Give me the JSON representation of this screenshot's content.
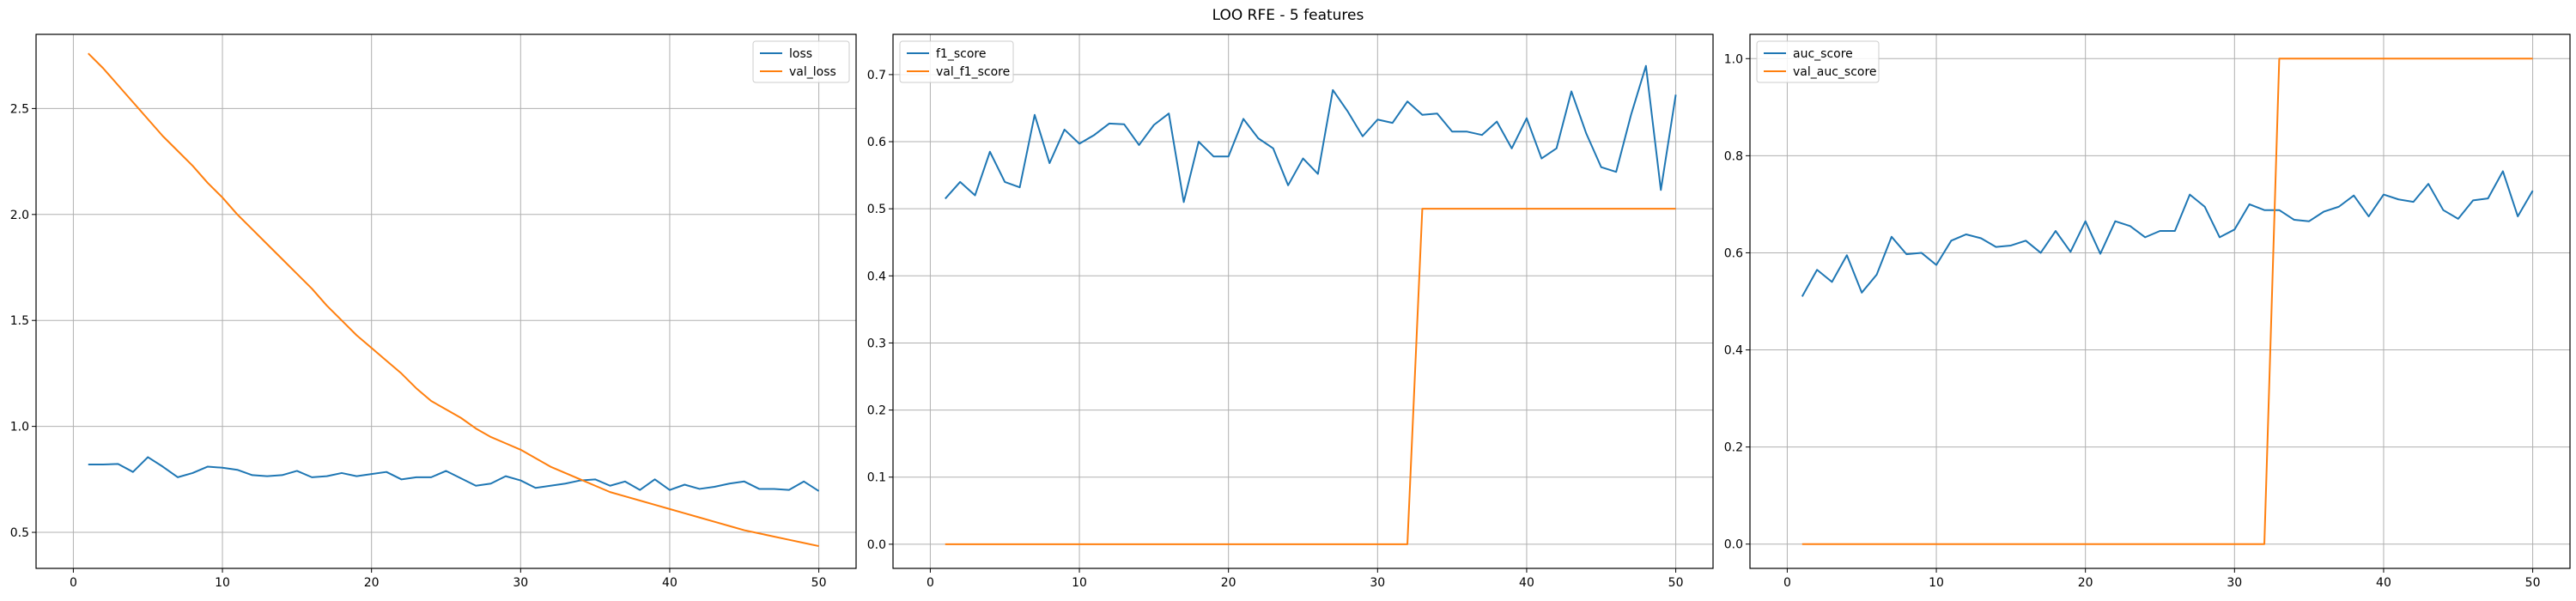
{
  "figure": {
    "title": "LOO RFE - 5 features"
  },
  "colors": {
    "series1": "#1f77b4",
    "series2": "#ff7f0e",
    "grid": "#b0b0b0",
    "frame": "#000000"
  },
  "chart_data": [
    {
      "type": "line",
      "title": "",
      "xlabel": "",
      "ylabel": "",
      "xlim": [
        -2.5,
        52.5
      ],
      "ylim": [
        0.33,
        2.85
      ],
      "xticks": [
        "0",
        "10",
        "20",
        "30",
        "40",
        "50"
      ],
      "yticks": [
        "0.5",
        "1.0",
        "1.5",
        "2.0",
        "2.5"
      ],
      "grid": true,
      "legend": "top-right",
      "x": [
        1,
        2,
        3,
        4,
        5,
        6,
        7,
        8,
        9,
        10,
        11,
        12,
        13,
        14,
        15,
        16,
        17,
        18,
        19,
        20,
        21,
        22,
        23,
        24,
        25,
        26,
        27,
        28,
        29,
        30,
        31,
        32,
        33,
        34,
        35,
        36,
        37,
        38,
        39,
        40,
        41,
        42,
        43,
        44,
        45,
        46,
        47,
        48,
        49,
        50
      ],
      "series": [
        {
          "name": "loss",
          "values": [
            0.82,
            0.82,
            0.823,
            0.785,
            0.855,
            0.81,
            0.76,
            0.78,
            0.81,
            0.805,
            0.795,
            0.77,
            0.765,
            0.77,
            0.79,
            0.76,
            0.765,
            0.78,
            0.765,
            0.775,
            0.785,
            0.75,
            0.76,
            0.76,
            0.79,
            0.755,
            0.72,
            0.73,
            0.765,
            0.745,
            0.71,
            0.72,
            0.73,
            0.745,
            0.75,
            0.72,
            0.74,
            0.7,
            0.75,
            0.7,
            0.725,
            0.705,
            0.715,
            0.73,
            0.74,
            0.705,
            0.705,
            0.7,
            0.74,
            0.695
          ]
        },
        {
          "name": "val_loss",
          "values": [
            2.76,
            2.69,
            2.61,
            2.53,
            2.45,
            2.37,
            2.3,
            2.23,
            2.15,
            2.08,
            2.0,
            1.93,
            1.86,
            1.79,
            1.72,
            1.65,
            1.57,
            1.5,
            1.43,
            1.37,
            1.31,
            1.25,
            1.18,
            1.12,
            1.08,
            1.04,
            0.99,
            0.95,
            0.92,
            0.89,
            0.85,
            0.81,
            0.78,
            0.75,
            0.72,
            0.69,
            0.67,
            0.65,
            0.63,
            0.61,
            0.59,
            0.57,
            0.55,
            0.53,
            0.51,
            0.495,
            0.48,
            0.465,
            0.45,
            0.435
          ]
        }
      ]
    },
    {
      "type": "line",
      "title": "",
      "xlabel": "",
      "ylabel": "",
      "xlim": [
        -2.5,
        52.5
      ],
      "ylim": [
        -0.036,
        0.76
      ],
      "xticks": [
        "0",
        "10",
        "20",
        "30",
        "40",
        "50"
      ],
      "yticks": [
        "0.0",
        "0.1",
        "0.2",
        "0.3",
        "0.4",
        "0.5",
        "0.6",
        "0.7"
      ],
      "grid": true,
      "legend": "top-left",
      "x": [
        1,
        2,
        3,
        4,
        5,
        6,
        7,
        8,
        9,
        10,
        11,
        12,
        13,
        14,
        15,
        16,
        17,
        18,
        19,
        20,
        21,
        22,
        23,
        24,
        25,
        26,
        27,
        28,
        29,
        30,
        31,
        32,
        33,
        34,
        35,
        36,
        37,
        38,
        39,
        40,
        41,
        42,
        43,
        44,
        45,
        46,
        47,
        48,
        49,
        50
      ],
      "series": [
        {
          "name": "f1_score",
          "values": [
            0.515,
            0.54,
            0.52,
            0.585,
            0.54,
            0.532,
            0.64,
            0.568,
            0.618,
            0.597,
            0.61,
            0.627,
            0.626,
            0.595,
            0.625,
            0.642,
            0.51,
            0.6,
            0.578,
            0.578,
            0.634,
            0.605,
            0.59,
            0.535,
            0.575,
            0.552,
            0.677,
            0.645,
            0.608,
            0.633,
            0.628,
            0.66,
            0.64,
            0.642,
            0.615,
            0.615,
            0.61,
            0.63,
            0.59,
            0.635,
            0.575,
            0.59,
            0.675,
            0.612,
            0.562,
            0.555,
            0.64,
            0.713,
            0.528,
            0.67
          ]
        },
        {
          "name": "val_f1_score",
          "values": [
            0,
            0,
            0,
            0,
            0,
            0,
            0,
            0,
            0,
            0,
            0,
            0,
            0,
            0,
            0,
            0,
            0,
            0,
            0,
            0,
            0,
            0,
            0,
            0,
            0,
            0,
            0,
            0,
            0,
            0,
            0,
            0,
            0.5,
            0.5,
            0.5,
            0.5,
            0.5,
            0.5,
            0.5,
            0.5,
            0.5,
            0.5,
            0.5,
            0.5,
            0.5,
            0.5,
            0.5,
            0.5,
            0.5,
            0.5
          ]
        }
      ]
    },
    {
      "type": "line",
      "title": "",
      "xlabel": "",
      "ylabel": "",
      "xlim": [
        -2.5,
        52.5
      ],
      "ylim": [
        -0.05,
        1.05
      ],
      "xticks": [
        "0",
        "10",
        "20",
        "30",
        "40",
        "50"
      ],
      "yticks": [
        "0.0",
        "0.2",
        "0.4",
        "0.6",
        "0.8",
        "1.0"
      ],
      "grid": true,
      "legend": "top-left",
      "x": [
        1,
        2,
        3,
        4,
        5,
        6,
        7,
        8,
        9,
        10,
        11,
        12,
        13,
        14,
        15,
        16,
        17,
        18,
        19,
        20,
        21,
        22,
        23,
        24,
        25,
        26,
        27,
        28,
        29,
        30,
        31,
        32,
        33,
        34,
        35,
        36,
        37,
        38,
        39,
        40,
        41,
        42,
        43,
        44,
        45,
        46,
        47,
        48,
        49,
        50
      ],
      "series": [
        {
          "name": "auc_score",
          "values": [
            0.51,
            0.565,
            0.54,
            0.595,
            0.518,
            0.555,
            0.633,
            0.597,
            0.6,
            0.575,
            0.625,
            0.638,
            0.63,
            0.612,
            0.615,
            0.625,
            0.6,
            0.645,
            0.602,
            0.665,
            0.598,
            0.665,
            0.655,
            0.632,
            0.645,
            0.645,
            0.72,
            0.695,
            0.632,
            0.648,
            0.7,
            0.688,
            0.688,
            0.668,
            0.665,
            0.685,
            0.695,
            0.718,
            0.675,
            0.72,
            0.71,
            0.705,
            0.742,
            0.688,
            0.67,
            0.708,
            0.712,
            0.768,
            0.675,
            0.728
          ]
        },
        {
          "name": "val_auc_score",
          "values": [
            0,
            0,
            0,
            0,
            0,
            0,
            0,
            0,
            0,
            0,
            0,
            0,
            0,
            0,
            0,
            0,
            0,
            0,
            0,
            0,
            0,
            0,
            0,
            0,
            0,
            0,
            0,
            0,
            0,
            0,
            0,
            0,
            1,
            1,
            1,
            1,
            1,
            1,
            1,
            1,
            1,
            1,
            1,
            1,
            1,
            1,
            1,
            1,
            1,
            1
          ]
        }
      ]
    }
  ]
}
